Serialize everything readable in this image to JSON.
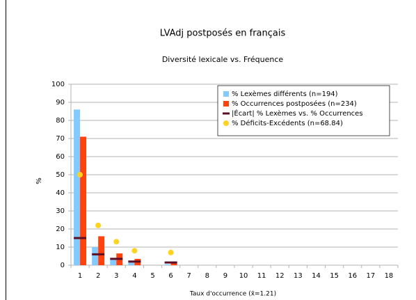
{
  "chart_data": {
    "type": "bar",
    "title": "LVAdj postposés en français",
    "subtitle": "Diversité lexicale vs. Fréquence",
    "y_label": "%",
    "x_label": "Taux d'occurrence (x̄=1.21)",
    "categories": [
      "1",
      "2",
      "3",
      "4",
      "5",
      "6",
      "7",
      "8",
      "9",
      "10",
      "11",
      "12",
      "13",
      "14",
      "15",
      "16",
      "17",
      "18"
    ],
    "series": [
      {
        "name": "% Lexèmes différents (n=194)",
        "color": "#83caff",
        "marker": "bar",
        "values": [
          86,
          10,
          3,
          1.5,
          null,
          0.5,
          null,
          null,
          null,
          null,
          null,
          null,
          null,
          null,
          null,
          null,
          null,
          null
        ]
      },
      {
        "name": "% Occurrences postposées (n=234)",
        "color": "#ff420e",
        "marker": "bar",
        "values": [
          71,
          16,
          6.5,
          3.5,
          null,
          2,
          null,
          null,
          null,
          null,
          null,
          null,
          null,
          null,
          null,
          null,
          null,
          null
        ]
      },
      {
        "name": "|Écart| % Lexèmes vs. % Occurrences",
        "color": "#5a0f24",
        "marker": "dash",
        "values": [
          15,
          6,
          3.5,
          2,
          null,
          1.5,
          null,
          null,
          null,
          null,
          null,
          null,
          null,
          null,
          null,
          null,
          null,
          null
        ]
      },
      {
        "name": "% Déficits-Excédents (n=68.84)",
        "color": "#ffd320",
        "marker": "dot",
        "values": [
          50,
          22,
          13,
          8,
          null,
          7,
          null,
          null,
          null,
          null,
          null,
          null,
          null,
          null,
          null,
          null,
          null,
          null
        ]
      }
    ],
    "ylim": [
      0,
      100
    ],
    "yticks": [
      0,
      10,
      20,
      30,
      40,
      50,
      60,
      70,
      80,
      90,
      100
    ],
    "grid": true,
    "legend": "top-right"
  }
}
